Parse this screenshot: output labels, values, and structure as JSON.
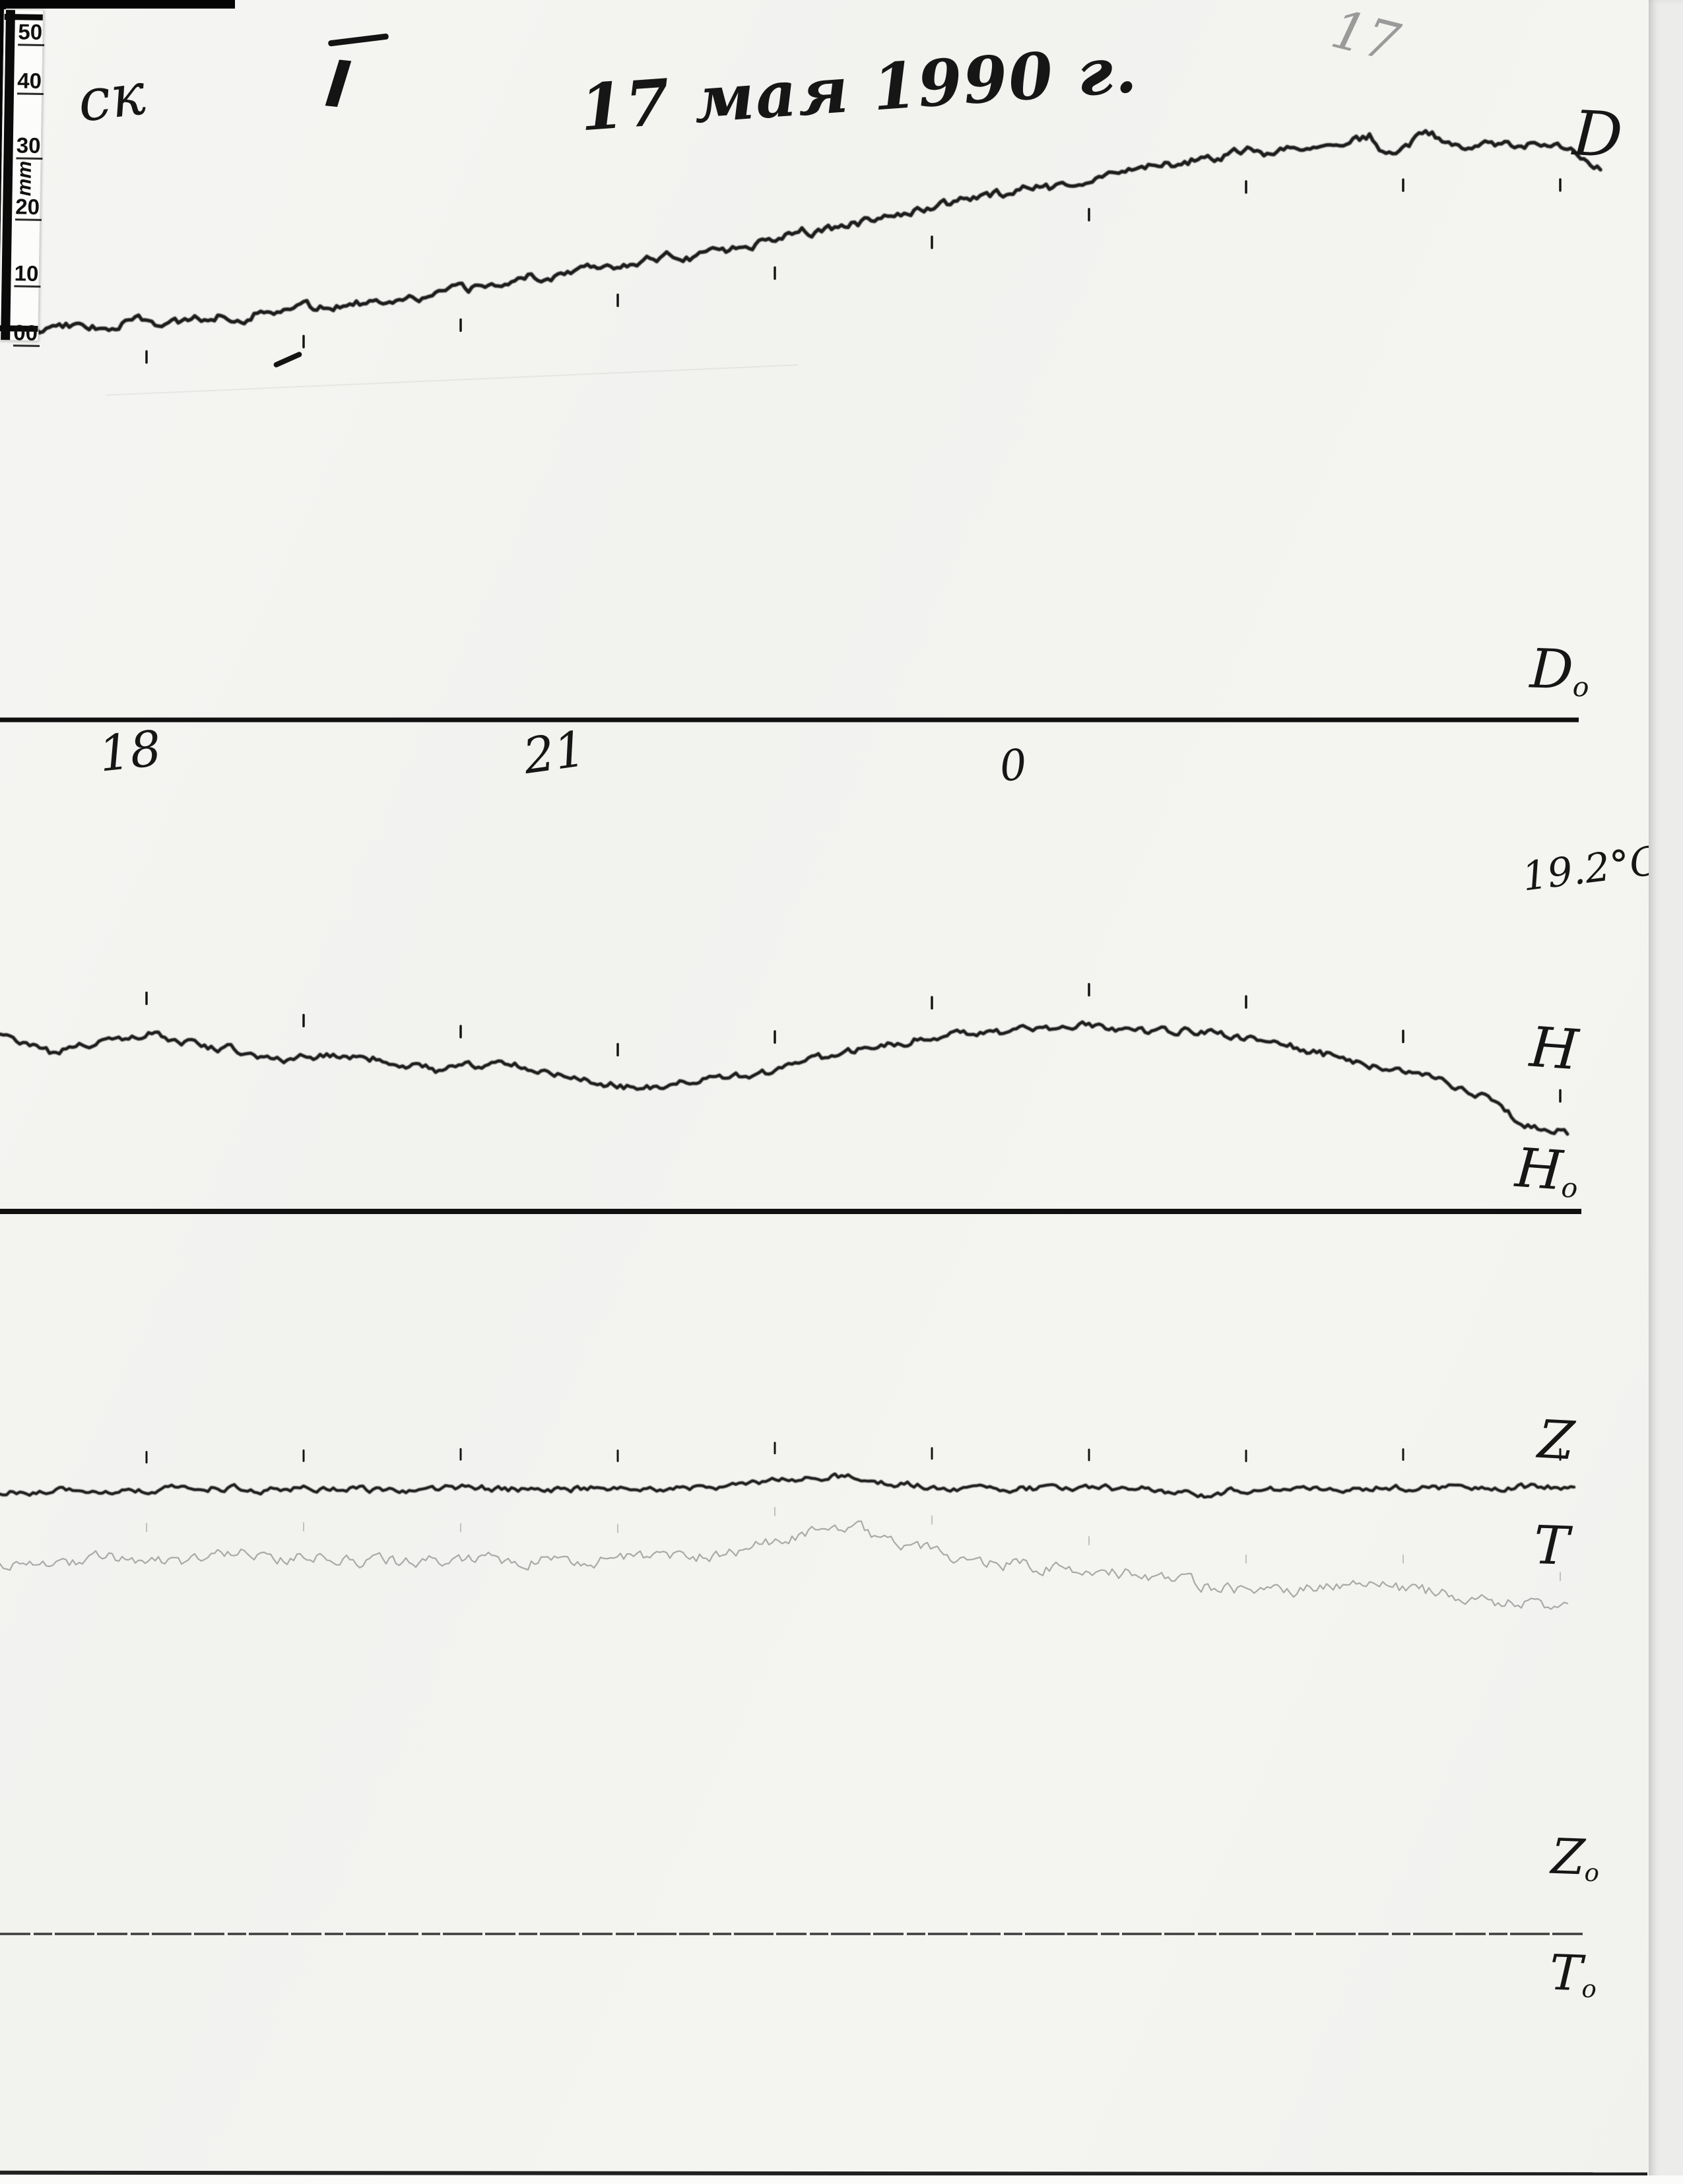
{
  "page": {
    "page_number_pencil": "17",
    "station_mark": "ск",
    "station_numeral": "I",
    "handwritten_title": "17 мая 1990 г.",
    "temperature_note": "19.2°C"
  },
  "ruler": {
    "unit": "mm",
    "marks": [
      "50",
      "40",
      "30",
      "20",
      "10",
      "00"
    ]
  },
  "trace_labels": {
    "d": {
      "main": "D",
      "sub": ""
    },
    "d0": {
      "main": "D",
      "sub": "o"
    },
    "h": {
      "main": "H",
      "sub": ""
    },
    "h0": {
      "main": "H",
      "sub": "o"
    },
    "z": {
      "main": "Z",
      "sub": ""
    },
    "t": {
      "main": "T",
      "sub": ""
    },
    "z0": {
      "main": "Z",
      "sub": "o"
    },
    "t0": {
      "main": "T",
      "sub": "o"
    }
  },
  "chart_data": {
    "type": "line",
    "title": "17 мая 1990 г.",
    "description": "Analog photographic magnetogram: declination D, horizontal intensity H, vertical intensity Z and temperature trace T versus time, with fixed baselines Do, Ho, Zo/To and a 50 mm scale ruler",
    "temperature_label": "19.2°C",
    "scale_ruler": {
      "unit": "mm",
      "marks": [
        50,
        40,
        30,
        20,
        10,
        0
      ]
    },
    "x_axis": {
      "unit": "hours",
      "tick_labels": [
        {
          "label": "18",
          "x": 192
        },
        {
          "label": "21",
          "x": 835
        },
        {
          "label": "0",
          "x": 1545
        }
      ],
      "hour_tick_x": [
        222,
        460,
        698,
        936,
        1174,
        1412,
        1650,
        1888,
        2126,
        2364
      ]
    },
    "series": [
      {
        "name": "D",
        "label": "D",
        "color": "#1c1c1c",
        "width": 5.5,
        "noise": 11,
        "seed": 7,
        "blur": true,
        "points": [
          [
            0,
            498
          ],
          [
            60,
            504
          ],
          [
            100,
            491
          ],
          [
            130,
            499
          ],
          [
            170,
            493
          ],
          [
            210,
            486
          ],
          [
            250,
            491
          ],
          [
            290,
            486
          ],
          [
            330,
            478
          ],
          [
            370,
            481
          ],
          [
            410,
            470
          ],
          [
            450,
            463
          ],
          [
            490,
            468
          ],
          [
            530,
            456
          ],
          [
            570,
            459
          ],
          [
            610,
            447
          ],
          [
            640,
            452
          ],
          [
            680,
            441
          ],
          [
            720,
            437
          ],
          [
            760,
            429
          ],
          [
            800,
            419
          ],
          [
            830,
            423
          ],
          [
            870,
            407
          ],
          [
            910,
            399
          ],
          [
            950,
            403
          ],
          [
            990,
            391
          ],
          [
            1020,
            386
          ],
          [
            1050,
            389
          ],
          [
            1080,
            371
          ],
          [
            1100,
            379
          ],
          [
            1130,
            373
          ],
          [
            1160,
            366
          ],
          [
            1190,
            354
          ],
          [
            1215,
            344
          ],
          [
            1235,
            353
          ],
          [
            1265,
            346
          ],
          [
            1295,
            339
          ],
          [
            1325,
            333
          ],
          [
            1355,
            329
          ],
          [
            1385,
            321
          ],
          [
            1415,
            313
          ],
          [
            1445,
            306
          ],
          [
            1475,
            301
          ],
          [
            1505,
            296
          ],
          [
            1535,
            291
          ],
          [
            1565,
            283
          ],
          [
            1595,
            286
          ],
          [
            1625,
            276
          ],
          [
            1655,
            271
          ],
          [
            1685,
            263
          ],
          [
            1715,
            256
          ],
          [
            1745,
            251
          ],
          [
            1775,
            249
          ],
          [
            1805,
            243
          ],
          [
            1835,
            239
          ],
          [
            1865,
            233
          ],
          [
            1895,
            229
          ],
          [
            1925,
            233
          ],
          [
            1955,
            226
          ],
          [
            1985,
            221
          ],
          [
            2015,
            216
          ],
          [
            2045,
            212
          ],
          [
            2075,
            206
          ],
          [
            2100,
            236
          ],
          [
            2125,
            228
          ],
          [
            2155,
            203
          ],
          [
            2185,
            209
          ],
          [
            2215,
            224
          ],
          [
            2245,
            219
          ],
          [
            2275,
            222
          ],
          [
            2305,
            217
          ],
          [
            2335,
            224
          ],
          [
            2365,
            227
          ],
          [
            2400,
            238
          ],
          [
            2428,
            253
          ]
        ]
      },
      {
        "name": "H",
        "label": "H",
        "color": "#1c1c1c",
        "width": 5,
        "noise": 10,
        "seed": 21,
        "blur": true,
        "points": [
          [
            0,
            1568
          ],
          [
            40,
            1580
          ],
          [
            80,
            1597
          ],
          [
            120,
            1586
          ],
          [
            160,
            1577
          ],
          [
            200,
            1570
          ],
          [
            225,
            1566
          ],
          [
            265,
            1579
          ],
          [
            305,
            1585
          ],
          [
            345,
            1589
          ],
          [
            385,
            1601
          ],
          [
            425,
            1609
          ],
          [
            465,
            1599
          ],
          [
            505,
            1603
          ],
          [
            545,
            1601
          ],
          [
            585,
            1608
          ],
          [
            625,
            1616
          ],
          [
            665,
            1622
          ],
          [
            705,
            1616
          ],
          [
            745,
            1611
          ],
          [
            785,
            1616
          ],
          [
            825,
            1623
          ],
          [
            865,
            1631
          ],
          [
            905,
            1639
          ],
          [
            945,
            1646
          ],
          [
            985,
            1648
          ],
          [
            1025,
            1641
          ],
          [
            1065,
            1636
          ],
          [
            1105,
            1632
          ],
          [
            1145,
            1628
          ],
          [
            1185,
            1624
          ],
          [
            1225,
            1609
          ],
          [
            1265,
            1598
          ],
          [
            1305,
            1590
          ],
          [
            1345,
            1583
          ],
          [
            1385,
            1576
          ],
          [
            1425,
            1572
          ],
          [
            1465,
            1568
          ],
          [
            1505,
            1565
          ],
          [
            1545,
            1562
          ],
          [
            1585,
            1560
          ],
          [
            1625,
            1557
          ],
          [
            1645,
            1552
          ],
          [
            1665,
            1558
          ],
          [
            1705,
            1562
          ],
          [
            1745,
            1564
          ],
          [
            1785,
            1562
          ],
          [
            1825,
            1565
          ],
          [
            1865,
            1568
          ],
          [
            1905,
            1575
          ],
          [
            1945,
            1583
          ],
          [
            1985,
            1593
          ],
          [
            2025,
            1601
          ],
          [
            2065,
            1611
          ],
          [
            2105,
            1619
          ],
          [
            2145,
            1629
          ],
          [
            2185,
            1639
          ],
          [
            2225,
            1653
          ],
          [
            2265,
            1669
          ],
          [
            2300,
            1699
          ],
          [
            2330,
            1710
          ],
          [
            2360,
            1713
          ],
          [
            2378,
            1719
          ]
        ]
      },
      {
        "name": "Z",
        "label": "Z",
        "color": "#1c1c1c",
        "width": 4.5,
        "noise": 8,
        "seed": 33,
        "blur": true,
        "points": [
          [
            0,
            2264
          ],
          [
            100,
            2258
          ],
          [
            200,
            2260
          ],
          [
            300,
            2253
          ],
          [
            400,
            2258
          ],
          [
            500,
            2255
          ],
          [
            600,
            2259
          ],
          [
            700,
            2254
          ],
          [
            800,
            2258
          ],
          [
            900,
            2256
          ],
          [
            1000,
            2257
          ],
          [
            1100,
            2252
          ],
          [
            1150,
            2247
          ],
          [
            1200,
            2242
          ],
          [
            1262,
            2237
          ],
          [
            1300,
            2241
          ],
          [
            1350,
            2248
          ],
          [
            1400,
            2252
          ],
          [
            1450,
            2255
          ],
          [
            1550,
            2256
          ],
          [
            1650,
            2255
          ],
          [
            1750,
            2257
          ],
          [
            1822,
            2268
          ],
          [
            1870,
            2257
          ],
          [
            1950,
            2255
          ],
          [
            2050,
            2256
          ],
          [
            2150,
            2254
          ],
          [
            2250,
            2255
          ],
          [
            2320,
            2253
          ],
          [
            2386,
            2255
          ]
        ]
      },
      {
        "name": "T",
        "label": "T",
        "color": "#a9a9a9",
        "width": 2.2,
        "noise": 16,
        "seed": 55,
        "blur": false,
        "points": [
          [
            0,
            2371
          ],
          [
            80,
            2377
          ],
          [
            150,
            2362
          ],
          [
            220,
            2361
          ],
          [
            300,
            2366
          ],
          [
            360,
            2352
          ],
          [
            420,
            2362
          ],
          [
            480,
            2359
          ],
          [
            540,
            2369
          ],
          [
            600,
            2367
          ],
          [
            660,
            2362
          ],
          [
            720,
            2361
          ],
          [
            780,
            2368
          ],
          [
            840,
            2362
          ],
          [
            900,
            2365
          ],
          [
            960,
            2361
          ],
          [
            1020,
            2362
          ],
          [
            1080,
            2356
          ],
          [
            1140,
            2346
          ],
          [
            1200,
            2330
          ],
          [
            1262,
            2309
          ],
          [
            1300,
            2316
          ],
          [
            1340,
            2331
          ],
          [
            1400,
            2346
          ],
          [
            1470,
            2367
          ],
          [
            1540,
            2372
          ],
          [
            1610,
            2378
          ],
          [
            1705,
            2385
          ],
          [
            1780,
            2396
          ],
          [
            1850,
            2406
          ],
          [
            1905,
            2410
          ],
          [
            1950,
            2412
          ],
          [
            2005,
            2403
          ],
          [
            2060,
            2396
          ],
          [
            2120,
            2408
          ],
          [
            2180,
            2415
          ],
          [
            2230,
            2420
          ],
          [
            2280,
            2428
          ],
          [
            2330,
            2431
          ],
          [
            2378,
            2437
          ]
        ]
      }
    ],
    "baselines": [
      {
        "name": "baseline-D0",
        "y": 1091,
        "x_start": 0,
        "x_end": 2392,
        "width": 7,
        "color": "#101010",
        "dash": ""
      },
      {
        "name": "baseline-H0",
        "y": 1836,
        "x_start": 0,
        "x_end": 2396,
        "width": 8,
        "color": "#101010",
        "dash": ""
      },
      {
        "name": "baseline-Z0T0",
        "y": 2931,
        "x_start": 0,
        "x_end": 2402,
        "width": 3.5,
        "color": "#3d3d3d",
        "dash": "46 5 28 4 60 4"
      }
    ],
    "tick_marks": [
      {
        "series": "D",
        "offset": 45,
        "length": 17,
        "width": 3.5,
        "color": "#141414"
      },
      {
        "series": "H",
        "offset": -62,
        "length": 17,
        "width": 3.5,
        "color": "#141414"
      },
      {
        "series": "Z",
        "offset": -58,
        "length": 16,
        "width": 3,
        "color": "#141414"
      },
      {
        "series": "T",
        "offset": -52,
        "length": 12,
        "width": 2,
        "color": "#c0c0c0"
      }
    ]
  }
}
